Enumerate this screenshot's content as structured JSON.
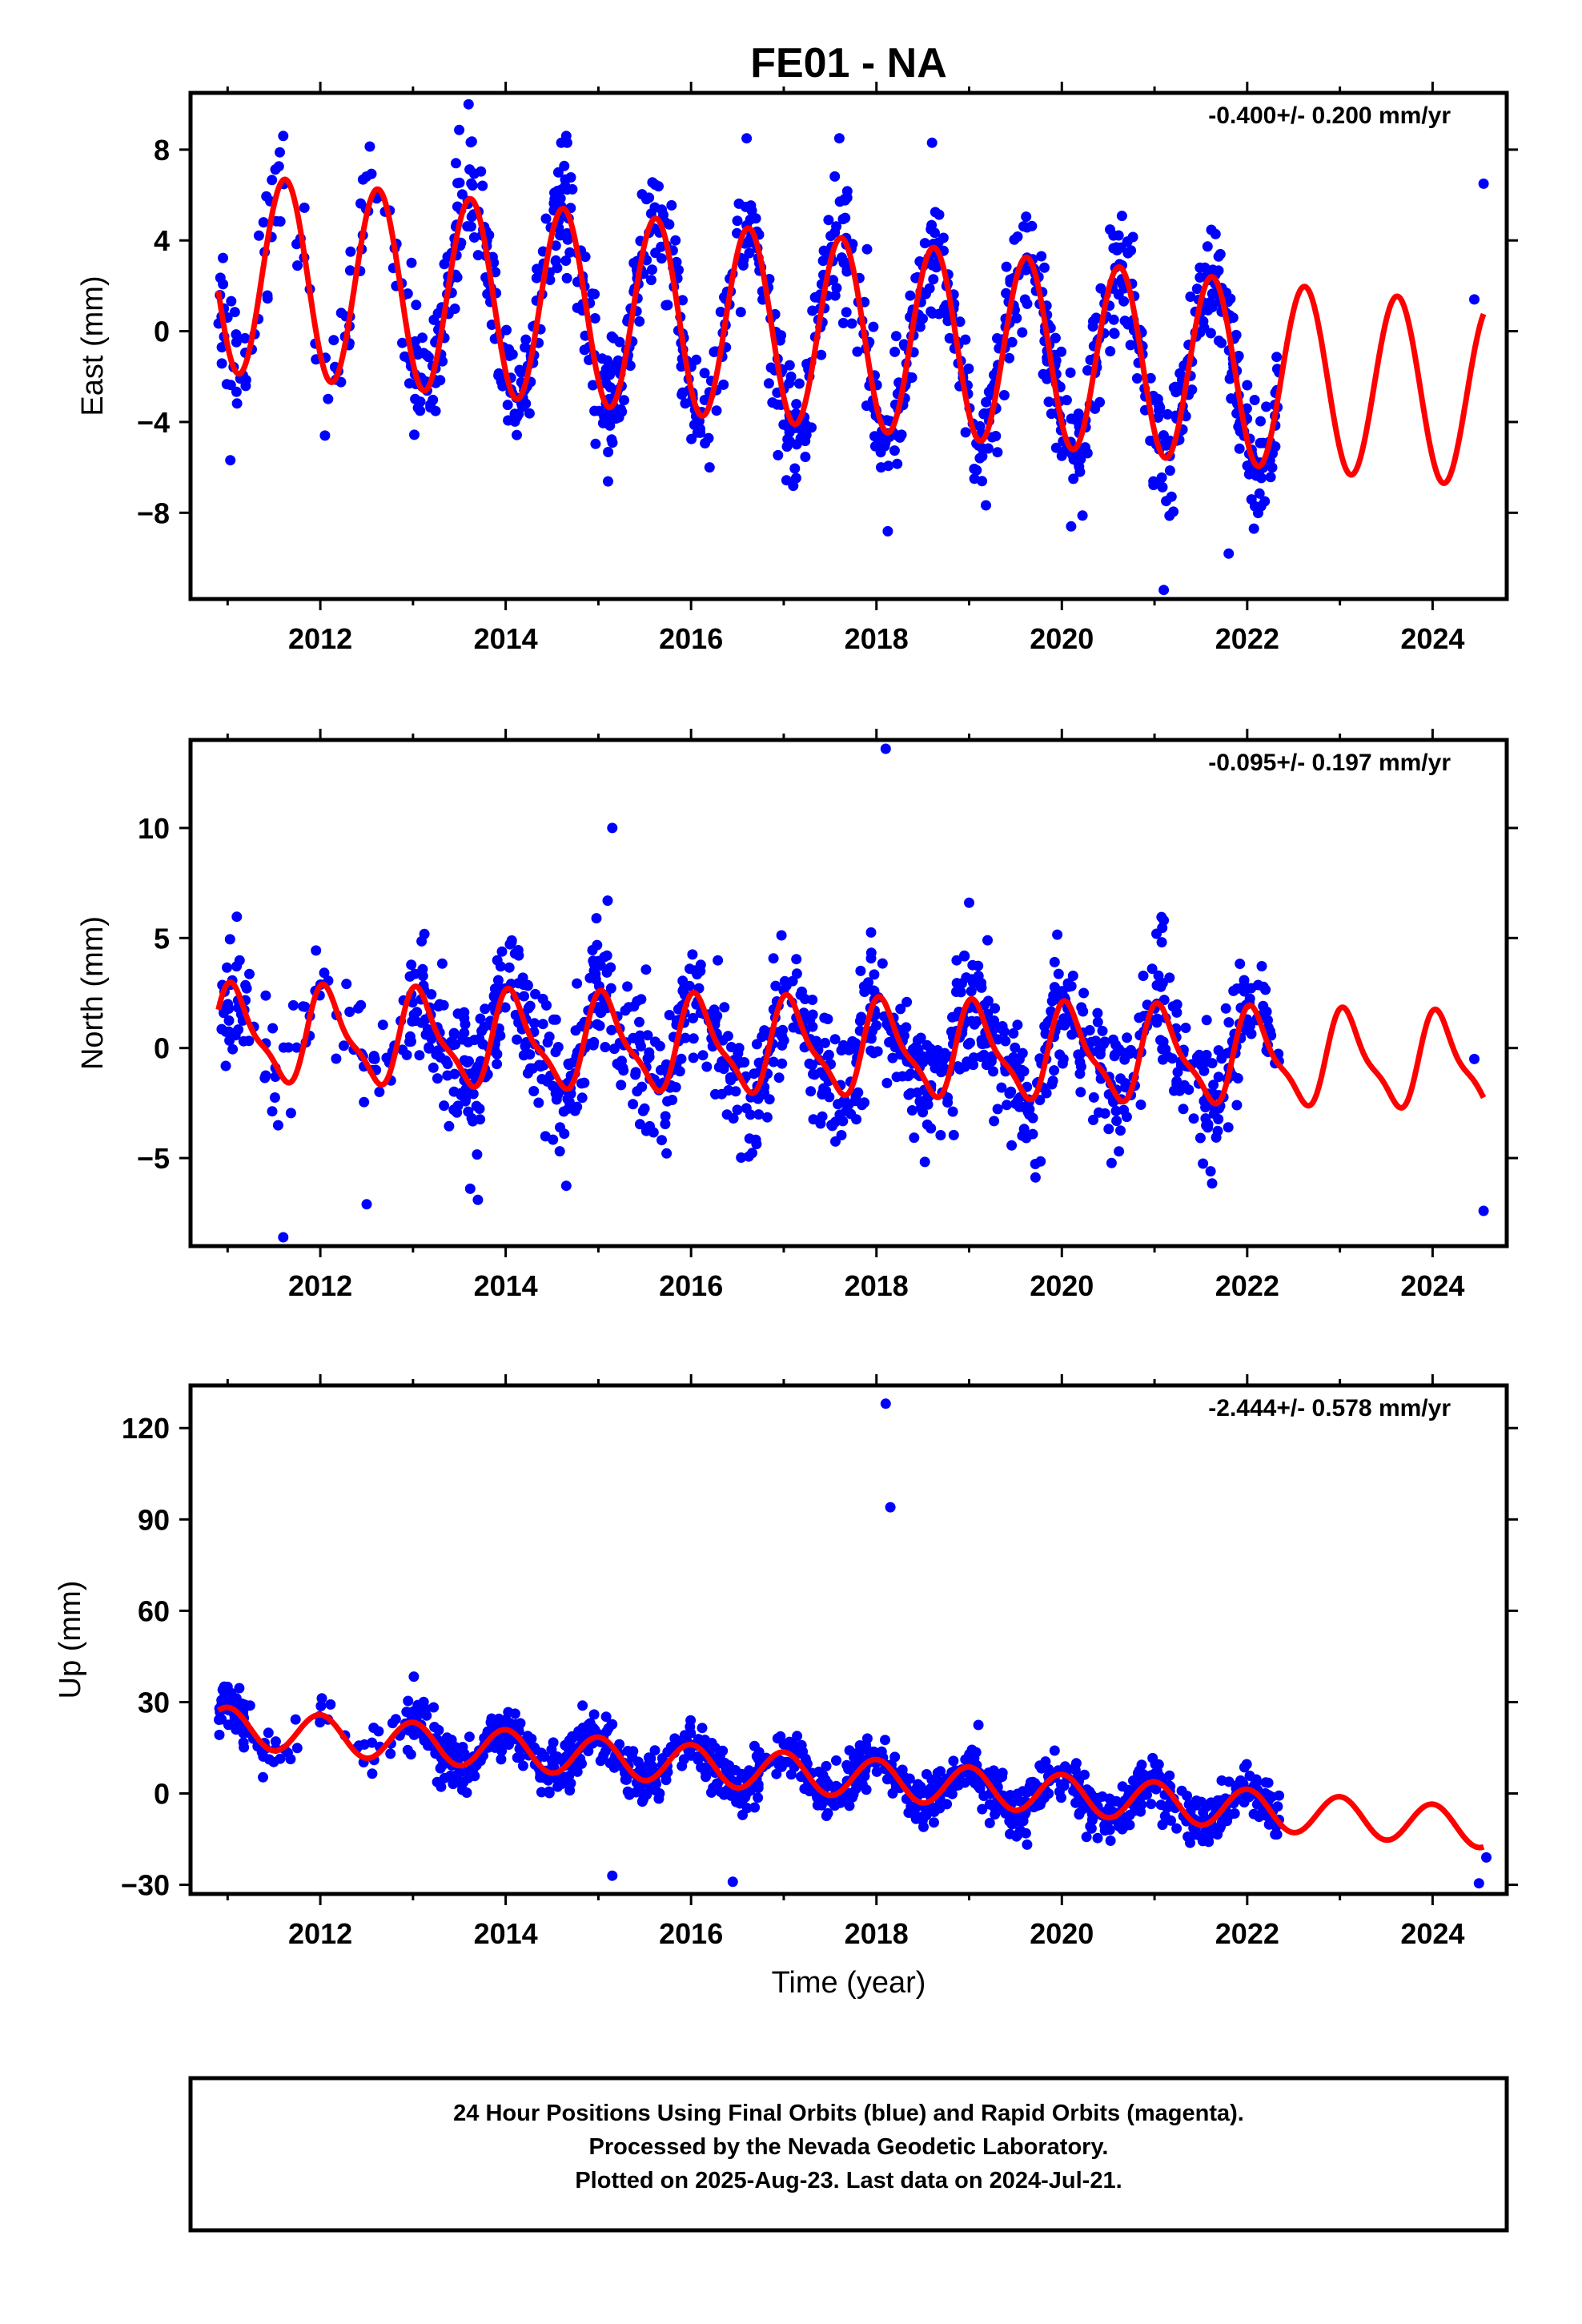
{
  "title": "FE01 - NA",
  "xlabel": "Time (year)",
  "caption_lines": [
    "24 Hour Positions Using Final Orbits (blue) and Rapid Orbits (magenta).",
    "Processed by the Nevada Geodetic Laboratory.",
    "Plotted on 2025-Aug-23. Last data on 2024-Jul-21."
  ],
  "colors": {
    "data_points": "#0000ff",
    "model_curve": "#ff0000",
    "frame": "#000000"
  },
  "chart_data": [
    {
      "type": "scatter",
      "component": "East",
      "ylabel": "East (mm)",
      "rate": "-0.400+/- 0.200 mm/yr",
      "xlim": [
        2010.6,
        2024.8
      ],
      "ylim": [
        -11.8,
        10.5
      ],
      "xticks": [
        "2012",
        "2014",
        "2016",
        "2018",
        "2020",
        "2022",
        "2024"
      ],
      "yticks": [
        "8",
        "4",
        "0",
        "−4",
        "−8"
      ],
      "ytick_values": [
        8,
        4,
        0,
        -4,
        -8
      ],
      "model": {
        "data_start": 2010.9,
        "data_end": 2022.35,
        "model_end": 2024.55,
        "trend_mm_per_yr": -0.4,
        "annual_amp_start": 4.4,
        "annual_amp_end": 4.0,
        "annual_phase_peak": 0.62,
        "semiannual_amp": 0.0,
        "offset_at_start": 2.6
      },
      "points": [
        [
          2011.6,
          8.6
        ],
        [
          2013.6,
          10.0
        ],
        [
          2014.6,
          8.3
        ],
        [
          2016.6,
          8.5
        ],
        [
          2017.6,
          8.5
        ],
        [
          2018.6,
          8.3
        ],
        [
          2021.1,
          -11.4
        ],
        [
          2020.1,
          -8.6
        ],
        [
          2012.05,
          -4.6
        ],
        [
          2016.2,
          -6.0
        ],
        [
          2024.55,
          6.5
        ],
        [
          2024.45,
          1.4
        ],
        [
          2018.05,
          -6.0
        ],
        [
          2021.8,
          -9.8
        ]
      ]
    },
    {
      "type": "scatter",
      "component": "North",
      "ylabel": "North (mm)",
      "rate": "-0.095+/- 0.197 mm/yr",
      "xlim": [
        2010.6,
        2024.8
      ],
      "ylim": [
        -9.0,
        14.0
      ],
      "xticks": [
        "2012",
        "2014",
        "2016",
        "2018",
        "2020",
        "2022",
        "2024"
      ],
      "yticks": [
        "10",
        "5",
        "0",
        "−5"
      ],
      "ytick_values": [
        10,
        5,
        0,
        -5
      ],
      "model": {
        "data_start": 2010.9,
        "data_end": 2022.35,
        "model_end": 2024.55,
        "trend_mm_per_yr": -0.095,
        "annual_amp_start": 2.0,
        "annual_amp_end": 2.0,
        "annual_phase_peak": 0.08,
        "semiannual_amp": 0.6,
        "offset_at_start": 0.6
      },
      "points": [
        [
          2018.1,
          13.6
        ],
        [
          2015.15,
          10.0
        ],
        [
          2011.6,
          -8.6
        ],
        [
          2012.5,
          -7.1
        ],
        [
          2024.55,
          -7.4
        ],
        [
          2024.45,
          -0.5
        ],
        [
          2013.7,
          -6.9
        ],
        [
          2015.1,
          6.7
        ],
        [
          2019.0,
          6.6
        ],
        [
          2021.1,
          5.8
        ]
      ]
    },
    {
      "type": "scatter",
      "component": "Up",
      "ylabel": "Up (mm)",
      "rate": "-2.444+/- 0.578 mm/yr",
      "xlim": [
        2010.6,
        2024.8
      ],
      "ylim": [
        -33.0,
        134.0
      ],
      "xticks": [
        "2012",
        "2014",
        "2016",
        "2018",
        "2020",
        "2022",
        "2024"
      ],
      "yticks": [
        "120",
        "90",
        "60",
        "30",
        "0",
        "−30"
      ],
      "ytick_values": [
        120,
        90,
        60,
        30,
        0,
        -30
      ],
      "model": {
        "data_start": 2010.9,
        "data_end": 2022.35,
        "model_end": 2024.55,
        "trend_mm_per_yr": -2.444,
        "annual_amp_start": 6.5,
        "annual_amp_end": 6.5,
        "annual_phase_peak": 0.0,
        "semiannual_amp": 0.0,
        "offset_at_start": 22.0
      },
      "points": [
        [
          2018.1,
          128.0
        ],
        [
          2018.15,
          94.0
        ],
        [
          2015.15,
          -27.0
        ],
        [
          2016.45,
          -29.0
        ],
        [
          2024.5,
          -29.5
        ],
        [
          2024.58,
          -21.0
        ],
        [
          2019.1,
          22.5
        ],
        [
          2011.0,
          35.0
        ]
      ]
    }
  ]
}
